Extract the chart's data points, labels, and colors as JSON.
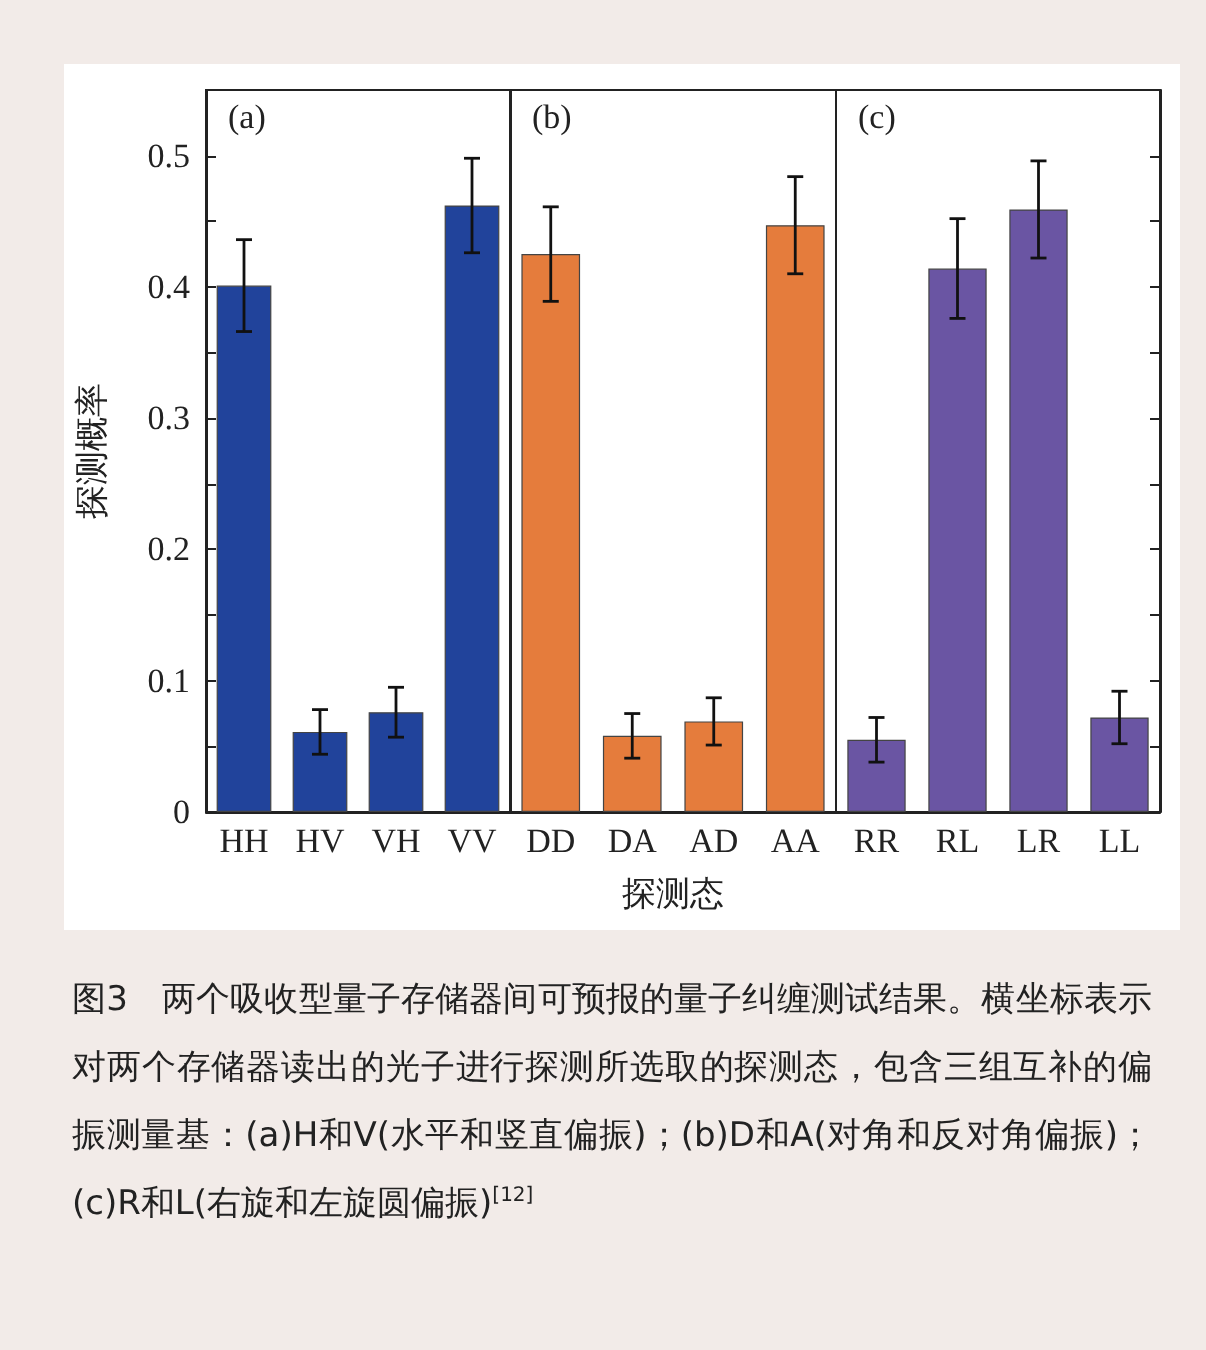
{
  "chart_data": [
    {
      "type": "bar",
      "title": "(a)",
      "ylabel": "探测概率",
      "categories": [
        "HH",
        "HV",
        "VH",
        "VV"
      ],
      "color": "#21439b",
      "values": [
        0.401,
        0.061,
        0.076,
        0.462
      ],
      "errors": [
        0.035,
        0.017,
        0.019,
        0.036
      ],
      "ylim": [
        0,
        0.55
      ],
      "yticks": [
        0,
        {
          "value": 0.05,
          "label": null
        },
        0.1,
        {
          "value": 0.15,
          "label": null
        },
        0.2,
        {
          "value": 0.25,
          "label": null
        },
        0.3,
        {
          "value": 0.35,
          "label": null
        },
        0.4,
        {
          "value": 0.45,
          "label": null
        },
        0.5
      ],
      "grid": false,
      "annotations": [
        "图3　两个吸收型量子存储器间可预报的量子纠缠测试结果。横坐标表示对两个存储器读出的光子进行探测所选取的探测态，包含三组互补的偏振测量基：(a)H和V(水平和竖直偏振)；(b)D和A(对角和反对角偏振)；(c)R和L(右旋和左旋圆偏振)$^{[12]}$"
      ]
    },
    {
      "type": "bar",
      "title": "(b)",
      "xlabel": "探测态",
      "categories": [
        "DD",
        "DA",
        "AD",
        "AA"
      ],
      "color": "#e57c3c",
      "values": [
        0.425,
        0.058,
        0.069,
        0.447
      ],
      "errors": [
        0.036,
        0.017,
        0.018,
        0.037
      ],
      "ylim": [
        0,
        0.55
      ],
      "grid": false,
      "tick_labels": "x"
    },
    {
      "type": "bar",
      "title": "(c)",
      "categories": [
        "RR",
        "RL",
        "LR",
        "LL"
      ],
      "color": "#6a55a3",
      "values": [
        0.055,
        0.414,
        0.459,
        0.072
      ],
      "errors": [
        0.017,
        0.038,
        0.037,
        0.02
      ],
      "ylim": [
        0,
        0.55
      ],
      "yticks": [
        0,
        {
          "value": 0.05,
          "label": null
        },
        0.1,
        {
          "value": 0.15,
          "label": null
        },
        0.2,
        {
          "value": 0.25,
          "label": null
        },
        0.3,
        {
          "value": 0.35,
          "label": null
        },
        0.4,
        {
          "value": 0.45,
          "label": null
        },
        0.5
      ],
      "grid": false,
      "tick_labels": "x"
    }
  ]
}
